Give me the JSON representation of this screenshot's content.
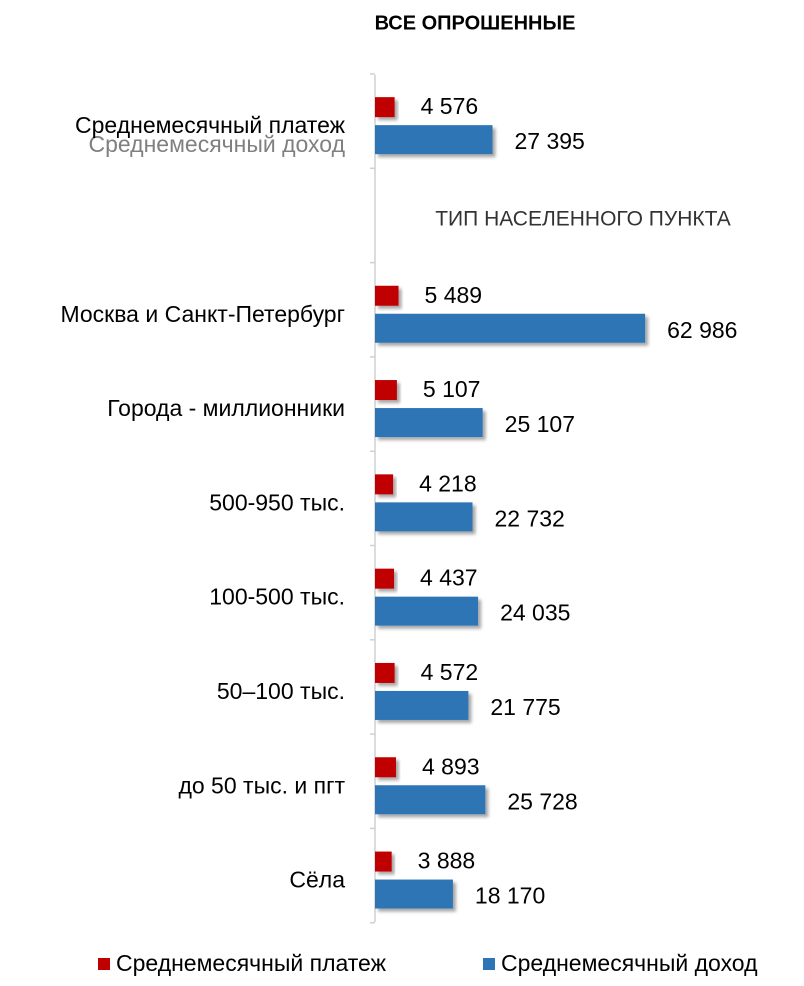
{
  "chart_data": {
    "type": "bar",
    "orientation": "horizontal",
    "title": "ВСЕ ОПРОШЕННЫЕ",
    "overlay_label": "Среднемесячный доход",
    "section_label": "ТИП НАСЕЛЕННОГО ПУНКТА",
    "categories": [
      "Среднемесячный платеж",
      null,
      "Москва и Санкт-Петербург",
      "Города - миллионники",
      "500-950 тыс.",
      "100-500 тыс.",
      "50–100 тыс.",
      "до 50 тыс. и пгт",
      "Сёла"
    ],
    "series": [
      {
        "name": "Среднемесячный платеж",
        "color": "#c00000",
        "values": [
          4576,
          null,
          5489,
          5107,
          4218,
          4437,
          4572,
          4893,
          3888
        ],
        "value_labels": [
          "4 576",
          null,
          "5 489",
          "5 107",
          "4 218",
          "4 437",
          "4 572",
          "4 893",
          "3 888"
        ]
      },
      {
        "name": "Среднемесячный доход",
        "color": "#2e75b6",
        "values": [
          27395,
          null,
          62986,
          25107,
          22732,
          24035,
          21775,
          25728,
          18170
        ],
        "value_labels": [
          "27 395",
          null,
          "62 986",
          "25 107",
          "22 732",
          "24 035",
          "21 775",
          "25 728",
          "18 170"
        ]
      }
    ],
    "xlim": [
      0,
      90000
    ],
    "legend": "bottom"
  }
}
